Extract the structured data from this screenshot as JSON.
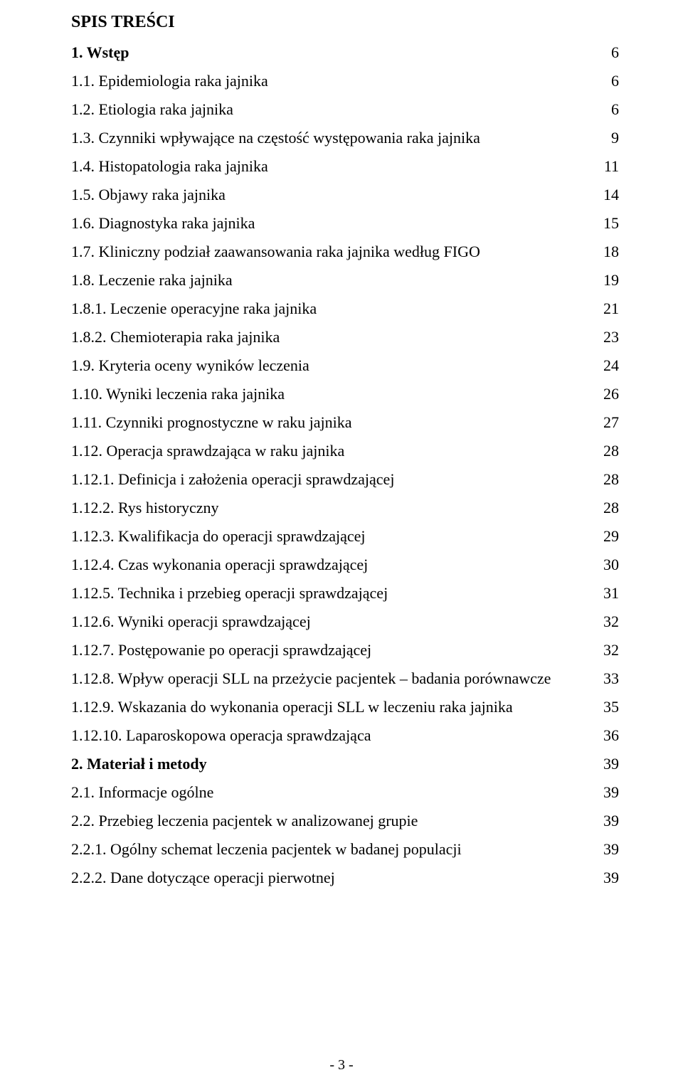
{
  "title": "SPIS TREŚCI",
  "footer": "- 3 -",
  "text_color": "#000000",
  "background_color": "#ffffff",
  "font_family": "Times New Roman",
  "title_fontsize": 24,
  "line_fontsize": 22,
  "entries": [
    {
      "label": "1. Wstęp",
      "page": "6",
      "bold": true
    },
    {
      "label": "1.1. Epidemiologia raka jajnika",
      "page": "6",
      "bold": false
    },
    {
      "label": "1.2. Etiologia raka jajnika",
      "page": "6",
      "bold": false
    },
    {
      "label": "1.3. Czynniki wpływające na częstość występowania raka jajnika",
      "page": "9",
      "bold": false
    },
    {
      "label": "1.4. Histopatologia raka jajnika",
      "page": "11",
      "bold": false
    },
    {
      "label": "1.5. Objawy raka jajnika",
      "page": "14",
      "bold": false
    },
    {
      "label": "1.6. Diagnostyka raka jajnika",
      "page": "15",
      "bold": false
    },
    {
      "label": "1.7. Kliniczny podział zaawansowania raka jajnika według FIGO",
      "page": "18",
      "bold": false
    },
    {
      "label": "1.8. Leczenie raka jajnika",
      "page": "19",
      "bold": false
    },
    {
      "label": "1.8.1. Leczenie operacyjne raka jajnika",
      "page": "21",
      "bold": false
    },
    {
      "label": "1.8.2. Chemioterapia raka jajnika",
      "page": "23",
      "bold": false
    },
    {
      "label": "1.9. Kryteria oceny wyników leczenia",
      "page": "24",
      "bold": false
    },
    {
      "label": "1.10. Wyniki leczenia raka jajnika",
      "page": "26",
      "bold": false
    },
    {
      "label": "1.11. Czynniki prognostyczne w raku jajnika",
      "page": "27",
      "bold": false
    },
    {
      "label": "1.12. Operacja sprawdzająca w raku jajnika",
      "page": "28",
      "bold": false
    },
    {
      "label": "1.12.1. Definicja i założenia operacji sprawdzającej",
      "page": "28",
      "bold": false
    },
    {
      "label": "1.12.2. Rys historyczny",
      "page": "28",
      "bold": false
    },
    {
      "label": "1.12.3. Kwalifikacja do operacji sprawdzającej",
      "page": "29",
      "bold": false
    },
    {
      "label": "1.12.4. Czas wykonania operacji sprawdzającej",
      "page": "30",
      "bold": false
    },
    {
      "label": "1.12.5. Technika i przebieg operacji sprawdzającej",
      "page": "31",
      "bold": false
    },
    {
      "label": "1.12.6. Wyniki operacji sprawdzającej",
      "page": "32",
      "bold": false
    },
    {
      "label": "1.12.7. Postępowanie po operacji sprawdzającej",
      "page": "32",
      "bold": false
    },
    {
      "label": "1.12.8. Wpływ operacji SLL na przeżycie pacjentek – badania porównawcze",
      "page": "33",
      "bold": false
    },
    {
      "label": "1.12.9. Wskazania do wykonania operacji SLL w leczeniu raka jajnika",
      "page": "35",
      "bold": false
    },
    {
      "label": "1.12.10. Laparoskopowa operacja sprawdzająca",
      "page": "36",
      "bold": false
    },
    {
      "label": "2. Materiał i metody",
      "page": "39",
      "bold": true
    },
    {
      "label": "2.1. Informacje ogólne",
      "page": "39",
      "bold": false
    },
    {
      "label": "2.2. Przebieg leczenia pacjentek w analizowanej grupie",
      "page": "39",
      "bold": false
    },
    {
      "label": "2.2.1. Ogólny schemat leczenia pacjentek w badanej populacji",
      "page": "39",
      "bold": false
    },
    {
      "label": "2.2.2. Dane dotyczące operacji pierwotnej",
      "page": "39",
      "bold": false
    }
  ]
}
